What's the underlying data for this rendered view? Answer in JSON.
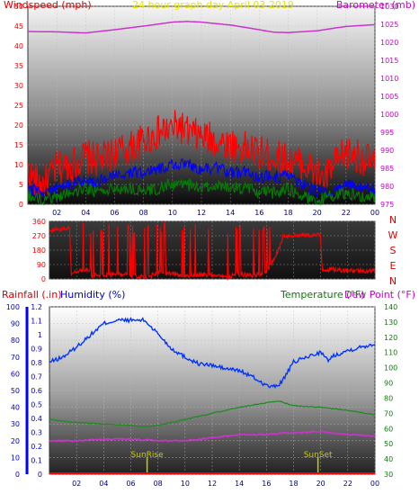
{
  "header": {
    "left_title": "Windspeed (mph)",
    "center_title": "24 hour graph day   April 03 2019",
    "right_title": "Barometer (mb)"
  },
  "colors": {
    "wind_axis": "#ff0000",
    "title": "#ffff00",
    "baro_axis": "#cc00cc",
    "gust": "#ff0000",
    "avg_wind": "#0000ff",
    "min_wind": "#008000",
    "barometer": "#cc33cc",
    "direction": "#ff0000",
    "humidity": "#0033ff",
    "temperature": "#228b22",
    "dewpoint": "#cc33cc",
    "rain": "#ff0000",
    "sun": "#cccc00"
  },
  "chart_data": [
    {
      "type": "line",
      "name": "wind-barometer-panel",
      "left_axis": {
        "label": "Windspeed (mph)",
        "ticks": [
          0,
          5,
          10,
          15,
          20,
          25,
          30,
          35,
          40,
          45,
          50
        ],
        "range": [
          0,
          50
        ]
      },
      "right_axis": {
        "label": "Barometer (mb)",
        "ticks": [
          975,
          980,
          985,
          990,
          995,
          1000,
          1005,
          1010,
          1015,
          1020,
          1025,
          1030
        ],
        "range": [
          975,
          1030
        ]
      },
      "x_ticks": [
        "02",
        "04",
        "06",
        "08",
        "10",
        "12",
        "14",
        "16",
        "18",
        "20",
        "22",
        "00"
      ],
      "x_range": [
        0,
        24
      ],
      "series": [
        {
          "name": "",
          "role": "barometer",
          "x": [
            0,
            2,
            4,
            6,
            8,
            10,
            11,
            12,
            14,
            16,
            17,
            18,
            20,
            22,
            24
          ],
          "y": [
            1023,
            1022.9,
            1022.6,
            1023.5,
            1024.5,
            1025.6,
            1025.8,
            1025.6,
            1024.8,
            1023.5,
            1022.8,
            1022.7,
            1023.2,
            1024.4,
            1024.9
          ]
        },
        {
          "name": "",
          "role": "gust",
          "x": [
            0,
            0.5,
            1,
            1.5,
            2,
            3,
            4,
            5,
            6,
            7,
            8,
            9,
            10,
            10.5,
            11,
            12,
            13,
            14,
            15,
            16,
            17,
            18,
            19,
            20,
            20.5,
            21,
            22,
            23,
            24
          ],
          "y": [
            8,
            6,
            5,
            7,
            9,
            10,
            12,
            11,
            13,
            14,
            16,
            18,
            19,
            20,
            18,
            17,
            16,
            15,
            14,
            13,
            12,
            11,
            10,
            8,
            6,
            9,
            13,
            12,
            10
          ]
        },
        {
          "name": "",
          "role": "average",
          "x": [
            0,
            1,
            2,
            3,
            4,
            5,
            6,
            7,
            8,
            9,
            10,
            11,
            12,
            13,
            14,
            15,
            16,
            17,
            18,
            19,
            20,
            21,
            22,
            23,
            24
          ],
          "y": [
            4,
            3,
            4,
            5,
            6,
            6,
            7,
            8,
            8,
            9,
            10,
            10,
            9,
            9,
            8,
            8,
            7,
            7,
            7,
            5,
            3,
            3,
            5,
            4,
            4
          ]
        },
        {
          "name": "",
          "role": "minimum",
          "x": [
            0,
            1,
            2,
            3,
            4,
            5,
            6,
            7,
            8,
            9,
            10,
            11,
            12,
            13,
            14,
            15,
            16,
            17,
            18,
            19,
            20,
            21,
            22,
            23,
            24
          ],
          "y": [
            2,
            1,
            2,
            3,
            4,
            3,
            4,
            4,
            3,
            4,
            5,
            5,
            4,
            5,
            4,
            4,
            3,
            3,
            4,
            2,
            1,
            2,
            3,
            2,
            2
          ]
        }
      ]
    },
    {
      "type": "line",
      "name": "wind-direction-panel",
      "left_axis": {
        "ticks": [
          0,
          90,
          180,
          270,
          360
        ],
        "range": [
          0,
          360
        ]
      },
      "right_axis": {
        "labels": [
          "N",
          "W",
          "S",
          "E",
          "N"
        ]
      },
      "x_range": [
        0,
        24
      ],
      "series": [
        {
          "name": "",
          "role": "direction",
          "x": [
            0,
            1.5,
            1.6,
            3,
            3.1,
            6,
            6.1,
            7.5,
            8,
            9,
            10,
            11,
            12,
            13,
            14,
            15,
            16,
            16.5,
            17,
            17.2,
            20,
            20.1,
            24
          ],
          "y": [
            300,
            320,
            40,
            60,
            20,
            30,
            10,
            20,
            40,
            30,
            20,
            30,
            20,
            10,
            30,
            20,
            40,
            120,
            200,
            270,
            275,
            60,
            50
          ]
        }
      ]
    },
    {
      "type": "line",
      "name": "rain-humidity-temperature-panel",
      "labels": {
        "rain": "Rainfall (.in)",
        "humidity": "Humidity (%)",
        "temperature": "Temperature (°F)",
        "dewpoint": "Dew Point (°F)"
      },
      "humidity_axis": {
        "ticks": [
          0,
          10,
          20,
          30,
          40,
          50,
          60,
          70,
          80,
          90,
          100
        ],
        "range": [
          0,
          100
        ]
      },
      "rain_axis": {
        "ticks": [
          0,
          0.1,
          0.2,
          0.3,
          0.4,
          0.5,
          0.6,
          0.7,
          0.8,
          0.9,
          1,
          1.1,
          1.2
        ],
        "range": [
          0,
          1.2
        ]
      },
      "temperature_axis": {
        "ticks": [
          30,
          40,
          50,
          60,
          70,
          80,
          90,
          100,
          110,
          120,
          130,
          140
        ],
        "range": [
          30,
          140
        ]
      },
      "x_ticks": [
        "02",
        "04",
        "06",
        "08",
        "10",
        "12",
        "14",
        "16",
        "18",
        "20",
        "22",
        "00"
      ],
      "x_range": [
        0,
        24
      ],
      "sun_events": [
        {
          "label": "SunRise",
          "x": 7.2
        },
        {
          "label": "SunSet",
          "x": 19.8
        }
      ],
      "series": [
        {
          "name": "Humidity (%)",
          "role": "humidity",
          "x": [
            0,
            1,
            2,
            3,
            4,
            5,
            6,
            7,
            8,
            9,
            10,
            11,
            12,
            13,
            14,
            15,
            16,
            16.5,
            17,
            17.5,
            18,
            19,
            20,
            20.5,
            21,
            22,
            23,
            24
          ],
          "y": [
            67,
            70,
            76,
            83,
            90,
            92,
            92,
            92,
            84,
            75,
            70,
            66,
            65,
            63,
            62,
            58,
            53,
            52,
            54,
            60,
            67,
            70,
            73,
            68,
            71,
            74,
            76,
            78
          ]
        },
        {
          "name": "Temperature (°F)",
          "role": "temperature",
          "x": [
            0,
            2,
            4,
            6,
            7,
            8,
            10,
            12,
            14,
            16,
            17,
            18,
            20,
            22,
            24
          ],
          "y": [
            66,
            64,
            63,
            62,
            61,
            62,
            66,
            70,
            74,
            77,
            78,
            75,
            74,
            72,
            69
          ]
        },
        {
          "name": "Dew Point (°F)",
          "role": "dewpoint",
          "x": [
            0,
            2,
            4,
            6,
            8,
            10,
            12,
            14,
            16,
            17,
            18,
            20,
            22,
            24
          ],
          "y": [
            52,
            52,
            53,
            53,
            52,
            52,
            54,
            56,
            56,
            57,
            57,
            58,
            56,
            55
          ]
        },
        {
          "name": "Rainfall (.in)",
          "role": "rain",
          "x": [
            0,
            24
          ],
          "y": [
            0,
            0
          ]
        }
      ]
    }
  ]
}
